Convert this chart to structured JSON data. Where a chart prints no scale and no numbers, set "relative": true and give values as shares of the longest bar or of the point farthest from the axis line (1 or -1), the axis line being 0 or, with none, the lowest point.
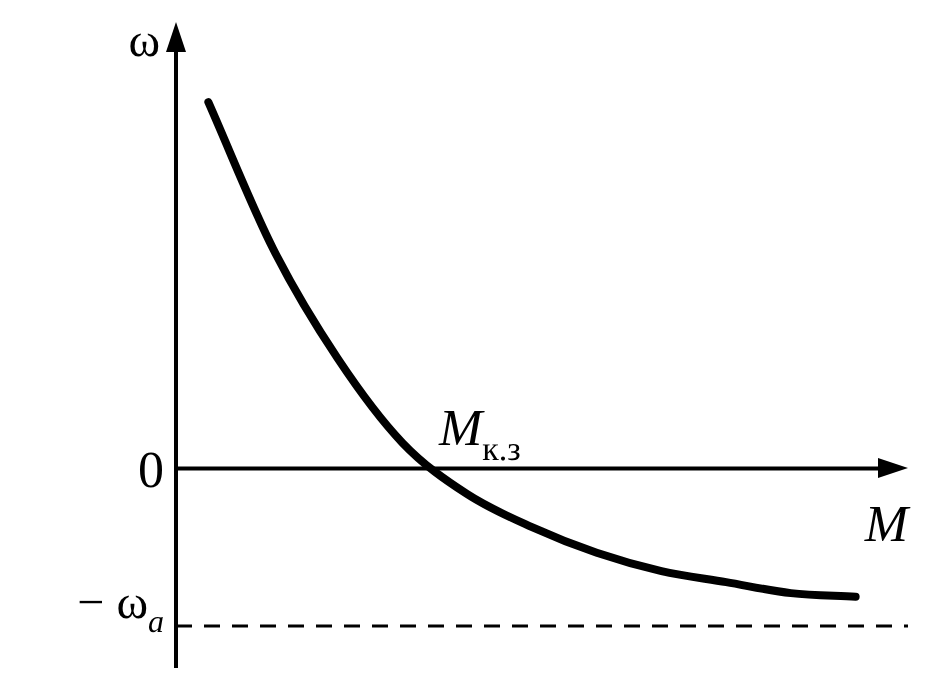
{
  "chart_data": {
    "type": "line",
    "relative": true,
    "xlabel": "M",
    "ylabel": "ω",
    "categories": [
      null,
      null,
      null,
      null,
      null,
      null,
      null,
      null,
      null,
      null,
      null
    ],
    "series": [
      {
        "color": "#000000",
        "values": [
          1,
          0.6,
          0.3,
          0.07,
          -0.07,
          -0.16,
          -0.23,
          -0.28,
          -0.31,
          -0.34,
          -0.35
        ]
      }
    ],
    "ref_lines": [
      {
        "axis": "y",
        "value": -0.43,
        "label": "− ω$_{a}$",
        "color": "#000000",
        "line_style": "dashed"
      }
    ],
    "annotations": [
      "0",
      "M$_{к.з}$"
    ],
    "marker": "none",
    "legend": false
  }
}
